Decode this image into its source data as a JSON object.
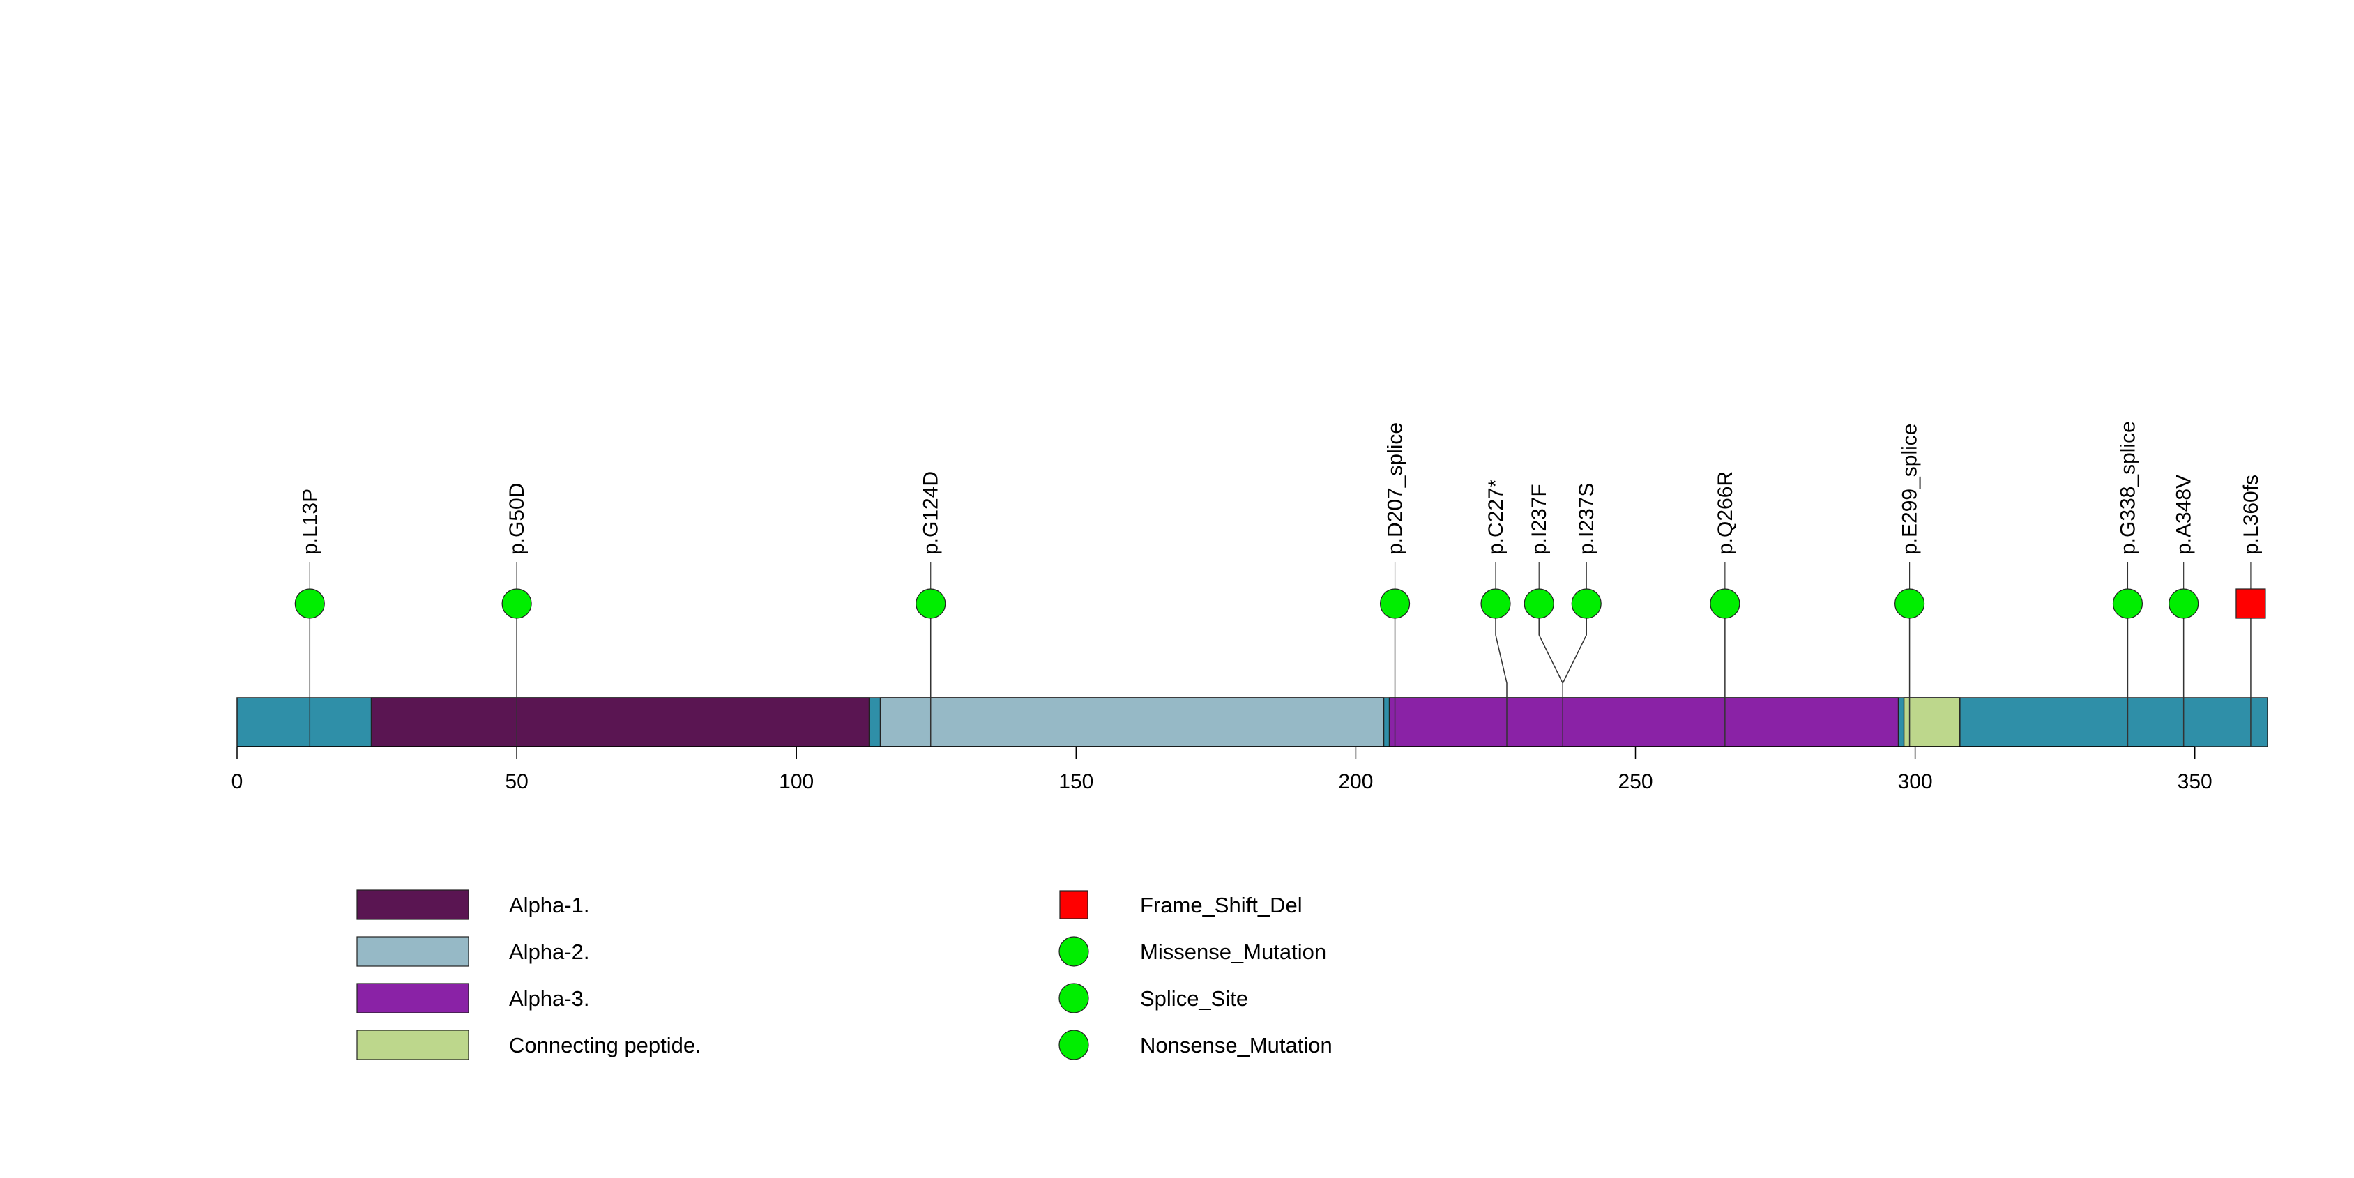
{
  "chart_data": {
    "type": "lollipop",
    "protein_length": 363,
    "xlim": [
      0,
      363
    ],
    "x_ticks": [
      0,
      50,
      100,
      150,
      200,
      250,
      300,
      350
    ],
    "backbone_color": "#2f8fa8",
    "domains": [
      {
        "name": "Alpha-1.",
        "start": 24,
        "end": 113,
        "color": "#5a1552"
      },
      {
        "name": "Alpha-2.",
        "start": 115,
        "end": 205,
        "color": "#96b9c6"
      },
      {
        "name": "Alpha-3.",
        "start": 206,
        "end": 297,
        "color": "#8a22a6"
      },
      {
        "name": "Connecting peptide.",
        "start": 298,
        "end": 308,
        "color": "#bdd78c"
      }
    ],
    "mutations": [
      {
        "label": "p.L13P",
        "position": 13,
        "type": "Missense_Mutation"
      },
      {
        "label": "p.G50D",
        "position": 50,
        "type": "Missense_Mutation"
      },
      {
        "label": "p.G124D",
        "position": 124,
        "type": "Missense_Mutation"
      },
      {
        "label": "p.D207_splice",
        "position": 207,
        "type": "Splice_Site"
      },
      {
        "label": "p.C227*",
        "position": 227,
        "type": "Nonsense_Mutation"
      },
      {
        "label": "p.I237F",
        "position": 237,
        "type": "Missense_Mutation"
      },
      {
        "label": "p.I237S",
        "position": 237,
        "type": "Missense_Mutation"
      },
      {
        "label": "p.Q266R",
        "position": 266,
        "type": "Missense_Mutation"
      },
      {
        "label": "p.E299_splice",
        "position": 299,
        "type": "Splice_Site"
      },
      {
        "label": "p.G338_splice",
        "position": 338,
        "type": "Splice_Site"
      },
      {
        "label": "p.A348V",
        "position": 348,
        "type": "Missense_Mutation"
      },
      {
        "label": "p.L360fs",
        "position": 360,
        "type": "Frame_Shift_Del"
      }
    ],
    "mutation_legend": [
      {
        "name": "Frame_Shift_Del",
        "shape": "square",
        "color": "#ff0000"
      },
      {
        "name": "Missense_Mutation",
        "shape": "circle",
        "color": "#00ee00"
      },
      {
        "name": "Splice_Site",
        "shape": "circle",
        "color": "#00ee00"
      },
      {
        "name": "Nonsense_Mutation",
        "shape": "circle",
        "color": "#00ee00"
      }
    ]
  }
}
